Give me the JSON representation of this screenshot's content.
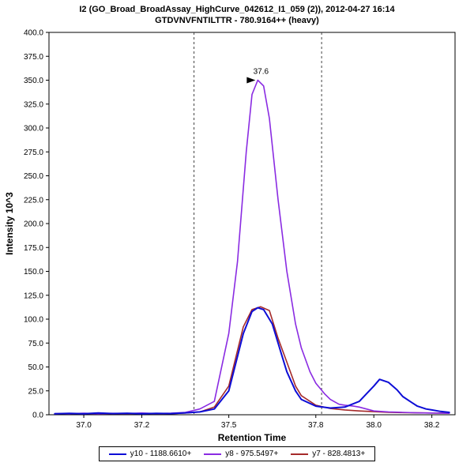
{
  "header": {
    "title": "I2 (GO_Broad_BroadAssay_HighCurve_042612_I1_059 (2)), 2012-04-27 16:14",
    "subtitle": "GTDVNVFNTILTTR - 780.9164++ (heavy)"
  },
  "chart_data": {
    "type": "line",
    "title": "I2 (GO_Broad_BroadAssay_HighCurve_042612_I1_059 (2)), 2012-04-27 16:14",
    "subtitle": "GTDVNVFNTILTTR - 780.9164++ (heavy)",
    "xlabel": "Retention Time",
    "ylabel": "Intensity 10^3",
    "xlim": [
      36.88,
      38.28
    ],
    "ylim": [
      0,
      400
    ],
    "x_ticks": [
      37.0,
      37.2,
      37.5,
      37.8,
      38.0,
      38.2
    ],
    "y_tick_step": 25,
    "grid": false,
    "legend_position": "bottom",
    "integration_boundaries": [
      37.38,
      37.82
    ],
    "peak_annotation": {
      "label": "37.6",
      "x": 37.6,
      "y": 350,
      "color": "#8a2be2"
    },
    "series": [
      {
        "name": "y10 - 1188.6610+",
        "color": "#0d0dd6",
        "width": 2,
        "points": [
          [
            36.9,
            1.0
          ],
          [
            36.95,
            1.5
          ],
          [
            37.0,
            1.0
          ],
          [
            37.05,
            1.8
          ],
          [
            37.1,
            1.2
          ],
          [
            37.15,
            1.6
          ],
          [
            37.2,
            1.0
          ],
          [
            37.25,
            1.5
          ],
          [
            37.3,
            1.2
          ],
          [
            37.35,
            2.0
          ],
          [
            37.4,
            3.0
          ],
          [
            37.45,
            6.0
          ],
          [
            37.5,
            25
          ],
          [
            37.55,
            85
          ],
          [
            37.58,
            108
          ],
          [
            37.6,
            112
          ],
          [
            37.62,
            110
          ],
          [
            37.65,
            95
          ],
          [
            37.68,
            65
          ],
          [
            37.7,
            45
          ],
          [
            37.73,
            25
          ],
          [
            37.75,
            16
          ],
          [
            37.8,
            9
          ],
          [
            37.85,
            7
          ],
          [
            37.9,
            8
          ],
          [
            37.95,
            14
          ],
          [
            38.0,
            30
          ],
          [
            38.02,
            37
          ],
          [
            38.05,
            34
          ],
          [
            38.08,
            26
          ],
          [
            38.1,
            19
          ],
          [
            38.13,
            13
          ],
          [
            38.15,
            9
          ],
          [
            38.18,
            6
          ],
          [
            38.2,
            5
          ],
          [
            38.23,
            3.5
          ],
          [
            38.26,
            2.5
          ]
        ]
      },
      {
        "name": "y8 - 975.5497+",
        "color": "#8a2be2",
        "width": 1.6,
        "points": [
          [
            36.9,
            1.2
          ],
          [
            36.95,
            1.0
          ],
          [
            37.0,
            1.6
          ],
          [
            37.05,
            1.0
          ],
          [
            37.1,
            1.5
          ],
          [
            37.15,
            1.2
          ],
          [
            37.2,
            1.8
          ],
          [
            37.25,
            1.2
          ],
          [
            37.3,
            1.6
          ],
          [
            37.35,
            2.5
          ],
          [
            37.4,
            6
          ],
          [
            37.45,
            14
          ],
          [
            37.5,
            85
          ],
          [
            37.53,
            160
          ],
          [
            37.56,
            275
          ],
          [
            37.58,
            335
          ],
          [
            37.6,
            350
          ],
          [
            37.62,
            344
          ],
          [
            37.64,
            310
          ],
          [
            37.67,
            225
          ],
          [
            37.7,
            150
          ],
          [
            37.73,
            95
          ],
          [
            37.75,
            70
          ],
          [
            37.78,
            45
          ],
          [
            37.8,
            33
          ],
          [
            37.83,
            22
          ],
          [
            37.85,
            16
          ],
          [
            37.88,
            11
          ],
          [
            37.9,
            10
          ],
          [
            37.93,
            9
          ],
          [
            37.95,
            8
          ],
          [
            38.0,
            4
          ],
          [
            38.05,
            3
          ],
          [
            38.1,
            2.5
          ],
          [
            38.15,
            2
          ],
          [
            38.2,
            1.8
          ],
          [
            38.26,
            1.5
          ]
        ]
      },
      {
        "name": "y7 - 828.4813+",
        "color": "#a52a2a",
        "width": 1.6,
        "points": [
          [
            36.9,
            1.0
          ],
          [
            36.95,
            1.3
          ],
          [
            37.0,
            1.0
          ],
          [
            37.05,
            1.4
          ],
          [
            37.1,
            1.0
          ],
          [
            37.15,
            1.3
          ],
          [
            37.2,
            1.1
          ],
          [
            37.25,
            1.4
          ],
          [
            37.3,
            1.1
          ],
          [
            37.35,
            1.8
          ],
          [
            37.4,
            3
          ],
          [
            37.45,
            8
          ],
          [
            37.5,
            30
          ],
          [
            37.55,
            92
          ],
          [
            37.58,
            110
          ],
          [
            37.61,
            113
          ],
          [
            37.64,
            109
          ],
          [
            37.67,
            80
          ],
          [
            37.7,
            55
          ],
          [
            37.73,
            30
          ],
          [
            37.75,
            20
          ],
          [
            37.8,
            10
          ],
          [
            37.85,
            6.5
          ],
          [
            37.9,
            5
          ],
          [
            37.95,
            4
          ],
          [
            38.0,
            3.2
          ],
          [
            38.05,
            2.6
          ],
          [
            38.1,
            2.2
          ],
          [
            38.15,
            2.0
          ],
          [
            38.2,
            1.8
          ],
          [
            38.26,
            1.8
          ]
        ]
      }
    ]
  }
}
